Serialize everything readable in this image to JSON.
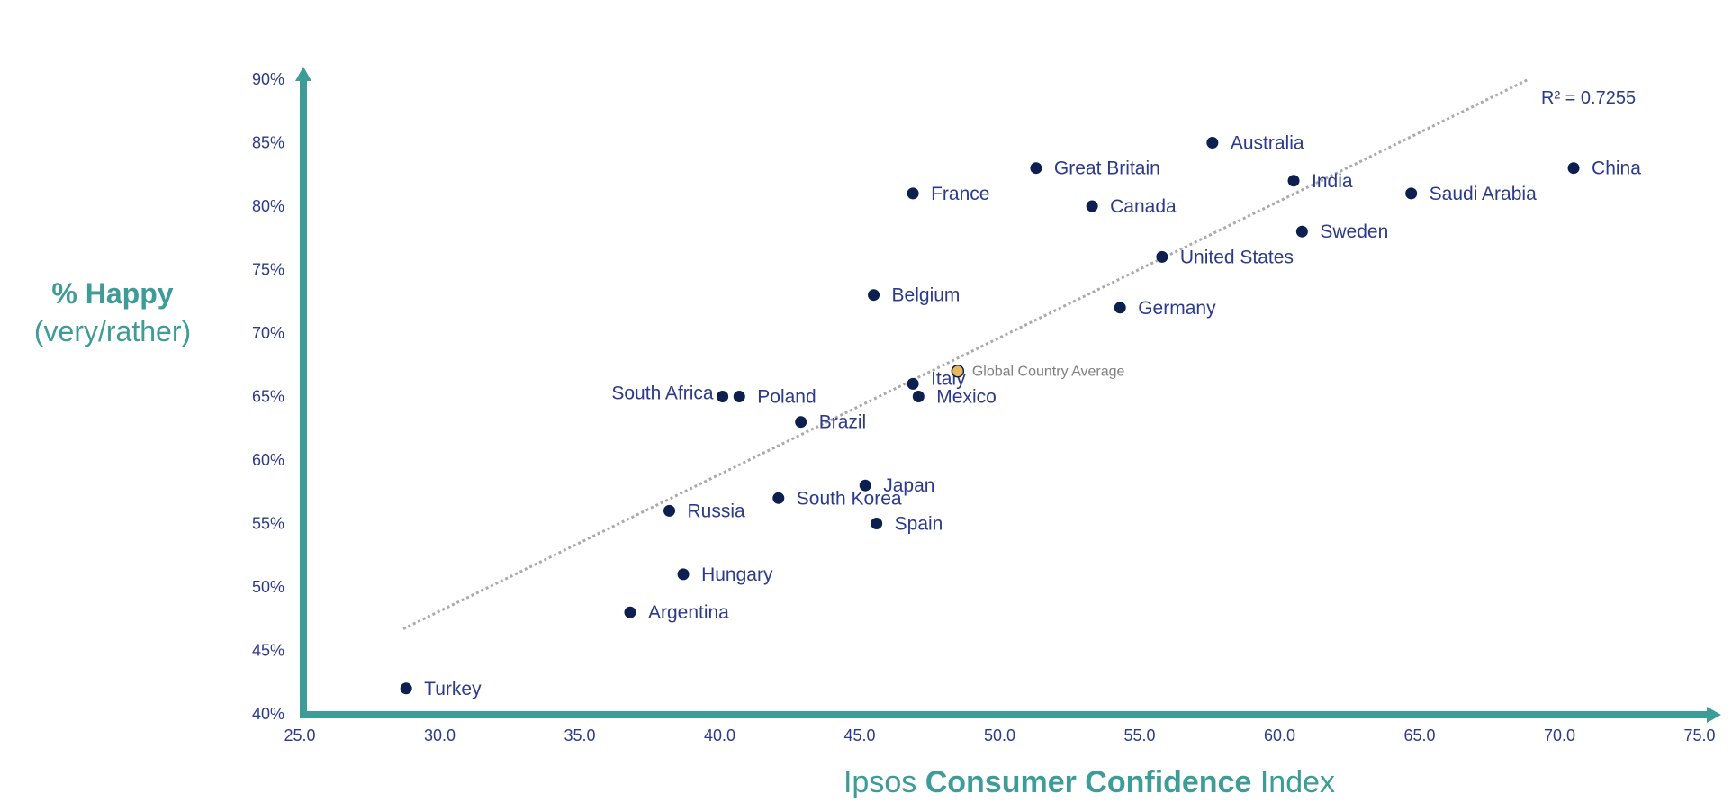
{
  "chart_data": {
    "type": "scatter",
    "xlabel": {
      "prefix": "Ipsos ",
      "bold": "Consumer Confidence",
      "suffix": " Index"
    },
    "ylabel": {
      "main": "%  Happy",
      "sub": "(very/rather)"
    },
    "xlim": [
      25,
      75
    ],
    "ylim": [
      40,
      90
    ],
    "x_ticks": [
      "25.0",
      "30.0",
      "35.0",
      "40.0",
      "45.0",
      "50.0",
      "55.0",
      "60.0",
      "65.0",
      "70.0",
      "75.0"
    ],
    "y_ticks": [
      "40%",
      "45%",
      "50%",
      "55%",
      "60%",
      "65%",
      "70%",
      "75%",
      "80%",
      "85%",
      "90%"
    ],
    "trendline": {
      "style": "dotted",
      "r2_label": "R² = 0.7255",
      "x": [
        28.7,
        68.9
      ],
      "y": [
        46.7,
        90.0
      ]
    },
    "points": [
      {
        "name": "China",
        "x": 70.5,
        "y": 83
      },
      {
        "name": "Saudi Arabia",
        "x": 64.7,
        "y": 81
      },
      {
        "name": "Australia",
        "x": 57.6,
        "y": 85
      },
      {
        "name": "India",
        "x": 60.5,
        "y": 82
      },
      {
        "name": "Sweden",
        "x": 60.8,
        "y": 78
      },
      {
        "name": "United States",
        "x": 55.8,
        "y": 76
      },
      {
        "name": "Great Britain",
        "x": 51.3,
        "y": 83
      },
      {
        "name": "Canada",
        "x": 53.3,
        "y": 80
      },
      {
        "name": "Germany",
        "x": 54.3,
        "y": 72
      },
      {
        "name": "France",
        "x": 46.9,
        "y": 81
      },
      {
        "name": "Belgium",
        "x": 45.5,
        "y": 73
      },
      {
        "name": "Italy",
        "x": 46.9,
        "y": 66
      },
      {
        "name": "Mexico",
        "x": 47.1,
        "y": 65
      },
      {
        "name": "Poland",
        "x": 40.7,
        "y": 65
      },
      {
        "name": "South Africa",
        "x": 40.1,
        "y": 65
      },
      {
        "name": "Brazil",
        "x": 42.9,
        "y": 63
      },
      {
        "name": "Japan",
        "x": 45.2,
        "y": 58
      },
      {
        "name": "South Korea",
        "x": 42.1,
        "y": 57
      },
      {
        "name": "Spain",
        "x": 45.6,
        "y": 55
      },
      {
        "name": "Russia",
        "x": 38.2,
        "y": 56
      },
      {
        "name": "Hungary",
        "x": 38.7,
        "y": 51
      },
      {
        "name": "Argentina",
        "x": 36.8,
        "y": 48
      },
      {
        "name": "Turkey",
        "x": 28.8,
        "y": 42
      }
    ],
    "average_point": {
      "name": "Global Country Average",
      "x": 48.5,
      "y": 67
    },
    "colors": {
      "axis": "#3d9c98",
      "point": "#0d1f4f",
      "average": "#e8b85a",
      "label": "#2b3a8c",
      "trend": "#aaaaaa"
    }
  }
}
